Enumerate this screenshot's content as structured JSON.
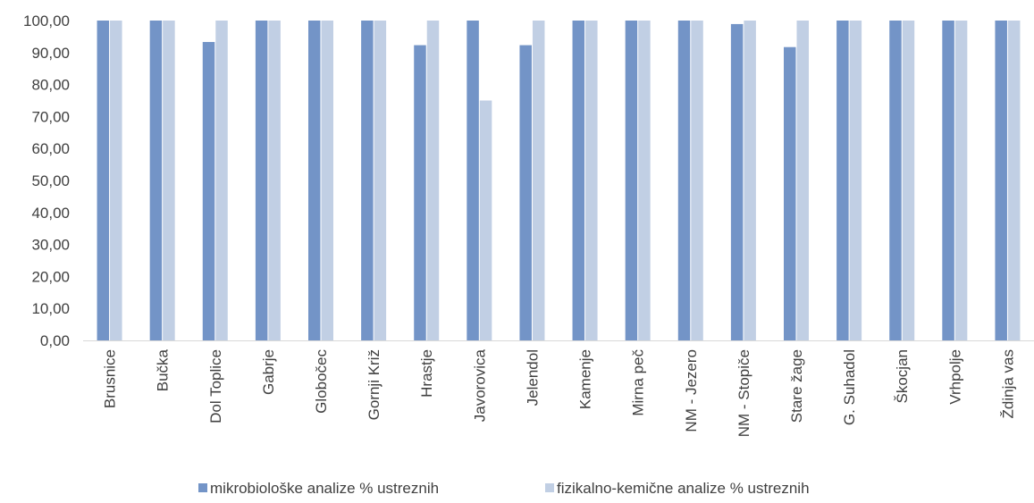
{
  "chart_data": {
    "type": "bar",
    "title": "",
    "xlabel": "",
    "ylabel": "",
    "ylim": [
      0,
      100
    ],
    "ytick_step": 10,
    "ytick_labels": [
      "0,00",
      "10,00",
      "20,00",
      "30,00",
      "40,00",
      "50,00",
      "60,00",
      "70,00",
      "80,00",
      "90,00",
      "100,00"
    ],
    "grid": false,
    "legend_position": "bottom",
    "categories": [
      "Brusnice",
      "Bučka",
      "Dol Toplice",
      "Gabrje",
      "Globočec",
      "Gornji Križ",
      "Hrastje",
      "Javorovica",
      "Jelendol",
      "Kamenje",
      "Mirna peč",
      "NM - Jezero",
      "NM - Stopiče",
      "Stare žage",
      "G. Suhadol",
      "Škocjan",
      "Vrhpolje",
      "Ždinja vas"
    ],
    "series": [
      {
        "name": "mikrobiološke analize % ustreznih",
        "color": "#7394c7",
        "values": [
          100,
          100,
          93.3,
          100,
          100,
          100,
          92.3,
          100,
          92.3,
          100,
          100,
          100,
          98.9,
          91.7,
          100,
          100,
          100,
          100
        ]
      },
      {
        "name": "fizikalno-kemične analize % ustreznih",
        "color": "#c1cfe4",
        "values": [
          100,
          100,
          100,
          100,
          100,
          100,
          100,
          75,
          100,
          100,
          100,
          100,
          100,
          100,
          100,
          100,
          100,
          100
        ]
      }
    ]
  }
}
